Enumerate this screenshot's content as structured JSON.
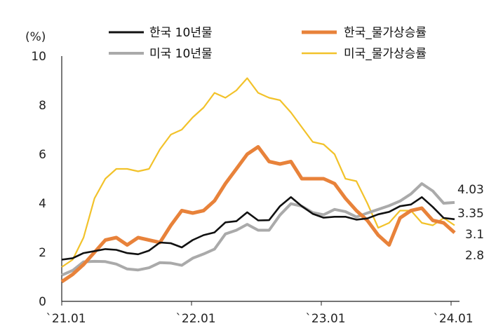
{
  "chart_data": {
    "type": "line",
    "unit": "(%)",
    "ylim": [
      0,
      10
    ],
    "yticks": [
      "0",
      "2",
      "4",
      "6",
      "8",
      "10"
    ],
    "xtick_labels": [
      "`21.01",
      "`22.01",
      "`23.01",
      "`24.01"
    ],
    "x": [
      "2021-01",
      "2021-02",
      "2021-03",
      "2021-04",
      "2021-05",
      "2021-06",
      "2021-07",
      "2021-08",
      "2021-09",
      "2021-10",
      "2021-11",
      "2021-12",
      "2022-01",
      "2022-02",
      "2022-03",
      "2022-04",
      "2022-05",
      "2022-06",
      "2022-07",
      "2022-08",
      "2022-09",
      "2022-10",
      "2022-11",
      "2022-12",
      "2023-01",
      "2023-02",
      "2023-03",
      "2023-04",
      "2023-05",
      "2023-06",
      "2023-07",
      "2023-08",
      "2023-09",
      "2023-10",
      "2023-11",
      "2023-12",
      "2024-01"
    ],
    "grid": false,
    "legend_position": "top",
    "series": [
      {
        "name": "한국 10년물",
        "color": "#111111",
        "values": [
          1.7,
          1.76,
          1.97,
          2.05,
          2.13,
          2.1,
          1.97,
          1.92,
          2.07,
          2.4,
          2.37,
          2.2,
          2.5,
          2.7,
          2.81,
          3.22,
          3.27,
          3.63,
          3.3,
          3.31,
          3.88,
          4.25,
          3.88,
          3.57,
          3.41,
          3.45,
          3.45,
          3.33,
          3.38,
          3.55,
          3.65,
          3.88,
          3.95,
          4.25,
          3.85,
          3.4,
          3.35
        ]
      },
      {
        "name": "한국_물가상승률",
        "color": "#E8823A",
        "values": [
          0.8,
          1.1,
          1.5,
          2.0,
          2.5,
          2.6,
          2.3,
          2.6,
          2.5,
          2.4,
          3.1,
          3.7,
          3.6,
          3.7,
          4.1,
          4.8,
          5.4,
          6.0,
          6.3,
          5.7,
          5.6,
          5.7,
          5.0,
          5.0,
          5.0,
          4.8,
          4.2,
          3.7,
          3.3,
          2.7,
          2.3,
          3.4,
          3.7,
          3.8,
          3.3,
          3.2,
          2.8
        ]
      },
      {
        "name": "미국 10년물",
        "color": "#AAAAAA",
        "values": [
          1.07,
          1.26,
          1.61,
          1.63,
          1.62,
          1.52,
          1.32,
          1.28,
          1.37,
          1.58,
          1.56,
          1.47,
          1.76,
          1.93,
          2.13,
          2.75,
          2.9,
          3.14,
          2.9,
          2.9,
          3.52,
          3.98,
          3.88,
          3.62,
          3.53,
          3.75,
          3.66,
          3.44,
          3.6,
          3.75,
          3.9,
          4.09,
          4.38,
          4.8,
          4.5,
          4.0,
          4.03
        ]
      },
      {
        "name": "미국_물가상승률",
        "color": "#F2C22A",
        "values": [
          1.4,
          1.7,
          2.6,
          4.2,
          5.0,
          5.4,
          5.4,
          5.3,
          5.4,
          6.2,
          6.8,
          7.0,
          7.5,
          7.9,
          8.5,
          8.3,
          8.6,
          9.1,
          8.5,
          8.3,
          8.2,
          7.7,
          7.1,
          6.5,
          6.4,
          6.0,
          5.0,
          4.9,
          4.0,
          3.0,
          3.2,
          3.7,
          3.7,
          3.2,
          3.1,
          3.4,
          3.1
        ]
      }
    ],
    "end_labels": [
      "4.03",
      "3.35",
      "3.1",
      "2.8"
    ]
  }
}
